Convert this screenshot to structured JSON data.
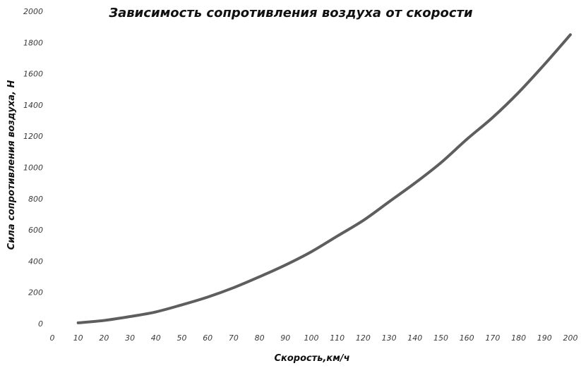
{
  "chart_data": {
    "type": "line",
    "title": "Зависимость сопротивления воздуха от скорости",
    "xlabel": "Скорость,км/ч",
    "ylabel": "Сила сопротивления воздуха, Н",
    "xlim": [
      0,
      200
    ],
    "ylim": [
      0,
      2000
    ],
    "x_ticks": [
      "0",
      "10",
      "20",
      "30",
      "40",
      "50",
      "60",
      "70",
      "80",
      "90",
      "100",
      "110",
      "120",
      "130",
      "140",
      "150",
      "160",
      "170",
      "180",
      "190",
      "200"
    ],
    "y_ticks": [
      "0",
      "200",
      "400",
      "600",
      "800",
      "1000",
      "1200",
      "1400",
      "1600",
      "1800",
      "2000"
    ],
    "grid": false,
    "legend": "none",
    "series": [
      {
        "color": "#5e5e5e",
        "x": [
          10,
          20,
          30,
          40,
          50,
          60,
          70,
          80,
          90,
          100,
          110,
          120,
          130,
          140,
          150,
          160,
          170,
          180,
          190,
          200
        ],
        "y": [
          5,
          20,
          45,
          75,
          120,
          170,
          230,
          300,
          375,
          460,
          560,
          660,
          780,
          900,
          1030,
          1180,
          1320,
          1480,
          1660,
          1850
        ]
      }
    ]
  }
}
